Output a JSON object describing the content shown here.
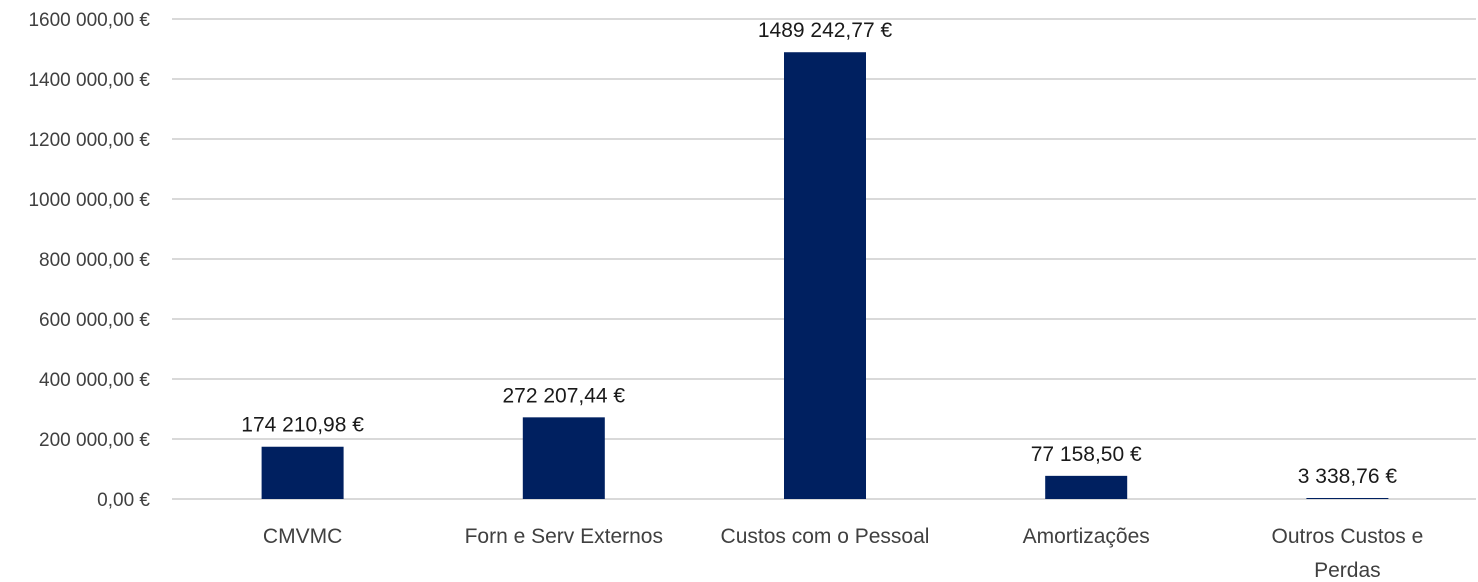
{
  "chart_data": {
    "type": "bar",
    "title": "",
    "xlabel": "",
    "ylabel": "",
    "categories": [
      [
        "CMVMC"
      ],
      [
        "Forn e Serv Externos"
      ],
      [
        "Custos com o Pessoal"
      ],
      [
        "Amortizações"
      ],
      [
        "Outros Custos e",
        "Perdas"
      ]
    ],
    "values": [
      174210.98,
      272207.44,
      1489242.77,
      77158.5,
      3338.76
    ],
    "data_labels": [
      "174 210,98 €",
      "272 207,44 €",
      "1489 242,77 €",
      "77 158,50 €",
      "3 338,76 €"
    ],
    "ylim": [
      0,
      1600000
    ],
    "yticks": [
      0,
      200000,
      400000,
      600000,
      800000,
      1000000,
      1200000,
      1400000,
      1600000
    ],
    "ytick_labels": [
      "0,00 €",
      "200 000,00 €",
      "400 000,00 €",
      "600 000,00 €",
      "800 000,00 €",
      "1000 000,00 €",
      "1200 000,00 €",
      "1400 000,00 €",
      "1600 000,00 €"
    ],
    "bar_color": "#002060",
    "grid": true,
    "legend": "none"
  }
}
